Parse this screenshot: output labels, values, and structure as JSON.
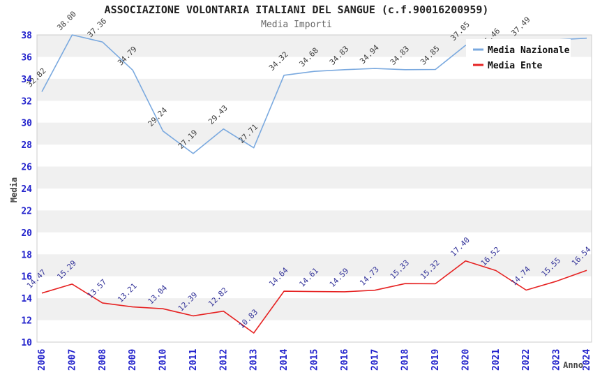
{
  "title": "ASSOCIAZIONE VOLONTARIA ITALIANI DEL SANGUE (c.f.90016200959)",
  "subtitle": "Media Importi",
  "colors": {
    "band_gray": "#f0f0f0",
    "plot_border": "#cccccc",
    "tick_label_blue": "#2323cc",
    "title_color": "#222222",
    "subtitle_color": "#666666",
    "axis_title_color": "#444444",
    "national_line": "#7aa9df",
    "national_label": "#404040",
    "ente_line": "#e62222",
    "ente_label": "#333399",
    "legend_text": "#111111",
    "legend_bg": "#ffffff"
  },
  "chart_data": {
    "type": "line",
    "title": "ASSOCIAZIONE VOLONTARIA ITALIANI DEL SANGUE (c.f.90016200959)",
    "subtitle": "Media Importi",
    "xlabel": "Anno",
    "ylabel": "Media",
    "ylim": [
      10,
      38
    ],
    "ytick_step": 2,
    "grid": "alternating horizontal gray bands every 2 units, gray on 36-38, 32-34, 28-30, 24-26, 20-22, 16-18, 12-14",
    "legend_position": "top-right inset, white box",
    "x": [
      2006,
      2007,
      2008,
      2009,
      2010,
      2011,
      2012,
      2013,
      2014,
      2015,
      2016,
      2017,
      2018,
      2019,
      2020,
      2021,
      2022,
      2023,
      2024
    ],
    "series": [
      {
        "name": "Media Nazionale",
        "color": "#7aa9df",
        "label_color": "#404040",
        "values": [
          32.82,
          38.0,
          37.36,
          34.79,
          29.24,
          27.19,
          29.43,
          27.71,
          34.32,
          34.68,
          34.83,
          34.94,
          34.83,
          34.85,
          37.05,
          36.46,
          37.49,
          37.55,
          37.7
        ],
        "labels": [
          "32.82",
          "38.00",
          "37.36",
          "34.79",
          "29.24",
          "27.19",
          "29.43",
          "27.71",
          "34.32",
          "34.68",
          "34.83",
          "34.94",
          "34.83",
          "34.85",
          "37.05",
          "36.46",
          "37.49",
          null,
          null
        ],
        "note": "2023 and 2024 point labels are hidden behind the legend box; their values are estimated from line position"
      },
      {
        "name": "Media Ente",
        "color": "#e62222",
        "label_color": "#333399",
        "values": [
          14.47,
          15.29,
          13.57,
          13.21,
          13.04,
          12.39,
          12.82,
          10.83,
          14.64,
          14.61,
          14.59,
          14.73,
          15.33,
          15.32,
          17.4,
          16.52,
          14.74,
          15.55,
          16.54
        ],
        "labels": [
          "14.47",
          "15.29",
          "13.57",
          "13.21",
          "13.04",
          "12.39",
          "12.82",
          "10.83",
          "14.64",
          "14.61",
          "14.59",
          "14.73",
          "15.33",
          "15.32",
          "17.40",
          "16.52",
          "14.74",
          "15.55",
          "16.54"
        ]
      }
    ]
  }
}
